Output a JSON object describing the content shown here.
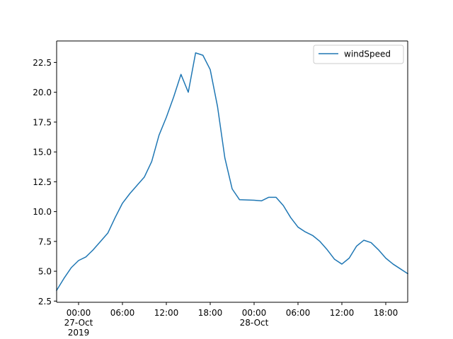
{
  "chart_data": {
    "type": "line",
    "title": "",
    "xlabel": "",
    "ylabel": "",
    "x_start": "2019-10-26 21:00",
    "x_end": "2019-10-28 21:00",
    "xlim": [
      "2019-10-26 21:00",
      "2019-10-28 21:00"
    ],
    "ylim": [
      2.4,
      24.3
    ],
    "grid": false,
    "legend": "top-right",
    "series": [
      {
        "name": "windSpeed",
        "color": "#1f77b4",
        "x": [
          "2019-10-26 21:00",
          "2019-10-26 22:00",
          "2019-10-26 23:00",
          "2019-10-27 00:00",
          "2019-10-27 01:00",
          "2019-10-27 02:00",
          "2019-10-27 03:00",
          "2019-10-27 04:00",
          "2019-10-27 05:00",
          "2019-10-27 06:00",
          "2019-10-27 07:00",
          "2019-10-27 08:00",
          "2019-10-27 09:00",
          "2019-10-27 10:00",
          "2019-10-27 11:00",
          "2019-10-27 12:00",
          "2019-10-27 13:00",
          "2019-10-27 14:00",
          "2019-10-27 15:00",
          "2019-10-27 16:00",
          "2019-10-27 17:00",
          "2019-10-27 18:00",
          "2019-10-27 19:00",
          "2019-10-27 20:00",
          "2019-10-27 21:00",
          "2019-10-27 22:00",
          "2019-10-28 00:00",
          "2019-10-28 01:00",
          "2019-10-28 02:00",
          "2019-10-28 03:00",
          "2019-10-28 04:00",
          "2019-10-28 05:00",
          "2019-10-28 06:00",
          "2019-10-28 07:00",
          "2019-10-28 08:00",
          "2019-10-28 09:00",
          "2019-10-28 10:00",
          "2019-10-28 11:00",
          "2019-10-28 12:00",
          "2019-10-28 13:00",
          "2019-10-28 14:00",
          "2019-10-28 15:00",
          "2019-10-28 16:00",
          "2019-10-28 17:00",
          "2019-10-28 18:00",
          "2019-10-28 19:00",
          "2019-10-28 20:00",
          "2019-10-28 21:00"
        ],
        "values": [
          3.4,
          4.4,
          5.3,
          5.9,
          6.2,
          6.8,
          7.5,
          8.2,
          9.5,
          10.7,
          11.5,
          12.2,
          12.9,
          14.2,
          16.4,
          17.9,
          19.6,
          21.5,
          20.0,
          23.3,
          23.1,
          21.9,
          18.8,
          14.5,
          11.9,
          11.0,
          10.95,
          10.9,
          11.2,
          11.2,
          10.5,
          9.5,
          8.7,
          8.3,
          8.0,
          7.5,
          6.8,
          6.0,
          5.6,
          6.1,
          7.1,
          7.6,
          7.4,
          6.8,
          6.1,
          5.6,
          5.2,
          4.8
        ]
      }
    ],
    "yticks": [
      {
        "value": 2.5,
        "label": "2.5"
      },
      {
        "value": 5.0,
        "label": "5.0"
      },
      {
        "value": 7.5,
        "label": "7.5"
      },
      {
        "value": 10.0,
        "label": "10.0"
      },
      {
        "value": 12.5,
        "label": "12.5"
      },
      {
        "value": 15.0,
        "label": "15.0"
      },
      {
        "value": 17.5,
        "label": "17.5"
      },
      {
        "value": 20.0,
        "label": "20.0"
      },
      {
        "value": 22.5,
        "label": "22.5"
      }
    ],
    "xticks": [
      {
        "value": "2019-10-27 00:00",
        "lines": [
          "00:00",
          "27-Oct",
          "2019"
        ]
      },
      {
        "value": "2019-10-27 06:00",
        "lines": [
          "06:00"
        ]
      },
      {
        "value": "2019-10-27 12:00",
        "lines": [
          "12:00"
        ]
      },
      {
        "value": "2019-10-27 18:00",
        "lines": [
          "18:00"
        ]
      },
      {
        "value": "2019-10-28 00:00",
        "lines": [
          "00:00",
          "28-Oct"
        ]
      },
      {
        "value": "2019-10-28 06:00",
        "lines": [
          "06:00"
        ]
      },
      {
        "value": "2019-10-28 12:00",
        "lines": [
          "12:00"
        ]
      },
      {
        "value": "2019-10-28 18:00",
        "lines": [
          "18:00"
        ]
      }
    ]
  }
}
